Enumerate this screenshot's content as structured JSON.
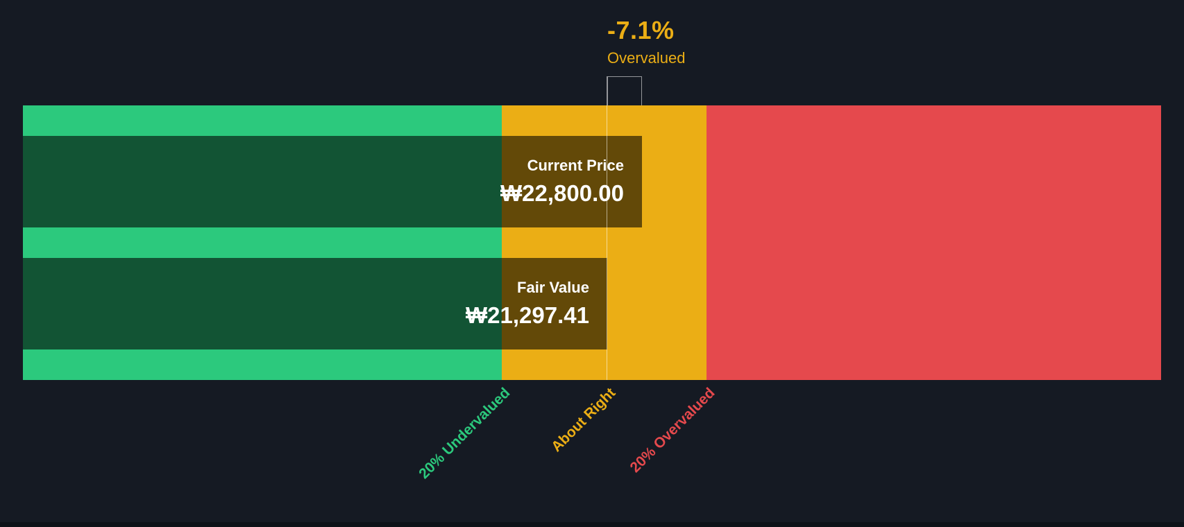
{
  "chart_data": {
    "type": "bar",
    "subtype": "fair-value-gauge",
    "series": [
      {
        "name": "Current Price",
        "value": 22800.0,
        "display": "₩22,800.00"
      },
      {
        "name": "Fair Value",
        "value": 21297.41,
        "display": "₩21,297.41"
      }
    ],
    "difference_percent": -7.1,
    "difference_label": "Overvalued",
    "currency": "₩",
    "zones": [
      {
        "label": "20% Undervalued",
        "color": "#2CC97D",
        "start_frac": 0.0,
        "end_frac": 0.4207
      },
      {
        "label": "About Right",
        "color": "#EBAE15",
        "start_frac": 0.4207,
        "end_frac": 0.6006
      },
      {
        "label": "20% Overvalued",
        "color": "#E5494D",
        "start_frac": 0.6006,
        "end_frac": 1.0
      }
    ],
    "fair_value_marker_frac": 0.5134,
    "current_price_frac": 0.5439,
    "grid": false,
    "legend_position": "none"
  },
  "annotation": {
    "percent": "-7.1%",
    "label": "Overvalued"
  },
  "bars": {
    "current": {
      "label": "Current Price",
      "value": "₩22,800.00"
    },
    "fair": {
      "label": "Fair Value",
      "value": "₩21,297.41"
    }
  },
  "axis_labels": {
    "undervalued": "20% Undervalued",
    "about_right": "About Right",
    "overvalued": "20% Overvalued"
  },
  "colors": {
    "background": "#151A23",
    "green": "#2CC97D",
    "amber": "#EBAE15",
    "red": "#E5494D",
    "overlay": "rgba(0,0,0,0.58)",
    "line": "rgba(255,255,255,0.55)"
  }
}
